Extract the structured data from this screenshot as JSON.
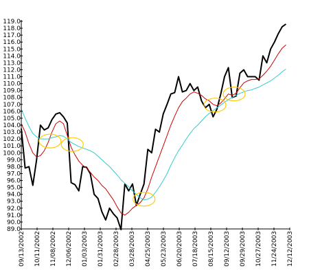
{
  "chart_data": {
    "type": "line",
    "title": "",
    "xlabel": "",
    "ylabel": "",
    "ylim": [
      89.0,
      119.0
    ],
    "grid": false,
    "legend": "none",
    "y_ticks": [
      "89.0",
      "90.0",
      "91.0",
      "92.0",
      "93.0",
      "94.0",
      "95.0",
      "96.0",
      "97.0",
      "98.0",
      "99.0",
      "100.0",
      "101.0",
      "102.0",
      "103.0",
      "104.0",
      "105.0",
      "106.0",
      "107.0",
      "108.0",
      "109.0",
      "110.0",
      "111.0",
      "112.0",
      "113.0",
      "114.0",
      "115.0",
      "116.0",
      "117.0",
      "118.0",
      "119.0"
    ],
    "x_ticks": [
      "09/13/2002",
      "10/11/2002",
      "11/08/2002",
      "12/06/2002",
      "01/03/2003",
      "01/31/2003",
      "02/28/2003",
      "03/28/2003",
      "04/25/2003",
      "05/23/2003",
      "06/20/2003",
      "07/18/2003",
      "08/15/2003",
      "09/12/2003",
      "09/29/2003",
      "10/27/2003",
      "11/24/2003",
      "12/12/2003"
    ],
    "x_range": [
      0,
      70
    ],
    "series": [
      {
        "color": "#000000",
        "width": 2,
        "points": [
          [
            0,
            103.5
          ],
          [
            1,
            97.8
          ],
          [
            2,
            98.0
          ],
          [
            3,
            95.3
          ],
          [
            4,
            99.0
          ],
          [
            5,
            104.0
          ],
          [
            6,
            103.3
          ],
          [
            7,
            103.6
          ],
          [
            8,
            104.8
          ],
          [
            9,
            105.6
          ],
          [
            10,
            105.8
          ],
          [
            11,
            105.2
          ],
          [
            12,
            104.3
          ],
          [
            13,
            95.7
          ],
          [
            14,
            95.4
          ],
          [
            15,
            94.5
          ],
          [
            16,
            98.0
          ],
          [
            17,
            97.9
          ],
          [
            18,
            97.0
          ],
          [
            19,
            94.0
          ],
          [
            20,
            93.4
          ],
          [
            21,
            91.5
          ],
          [
            22,
            90.3
          ],
          [
            23,
            92.0
          ],
          [
            24,
            91.2
          ],
          [
            25,
            90.6
          ],
          [
            26,
            88.9
          ],
          [
            27,
            95.5
          ],
          [
            28,
            94.5
          ],
          [
            29,
            95.5
          ],
          [
            30,
            92.4
          ],
          [
            31,
            94.0
          ],
          [
            32,
            95.5
          ],
          [
            33,
            100.5
          ],
          [
            34,
            100.0
          ],
          [
            35,
            103.4
          ],
          [
            36,
            103.0
          ],
          [
            37,
            105.6
          ],
          [
            38,
            107.0
          ],
          [
            39,
            108.5
          ],
          [
            40,
            108.7
          ],
          [
            41,
            111.0
          ],
          [
            42,
            108.8
          ],
          [
            43,
            109.0
          ],
          [
            44,
            110.0
          ],
          [
            45,
            109.0
          ],
          [
            46,
            109.5
          ],
          [
            47,
            107.5
          ],
          [
            48,
            106.5
          ],
          [
            49,
            107.0
          ],
          [
            50,
            105.2
          ],
          [
            51,
            106.3
          ],
          [
            52,
            108.5
          ],
          [
            53,
            111.0
          ],
          [
            54,
            112.3
          ],
          [
            55,
            108.0
          ],
          [
            56,
            108.2
          ],
          [
            57,
            111.5
          ],
          [
            58,
            112.0
          ],
          [
            59,
            111.0
          ],
          [
            60,
            111.0
          ],
          [
            61,
            111.0
          ],
          [
            62,
            110.5
          ],
          [
            63,
            114.0
          ],
          [
            64,
            113.0
          ],
          [
            65,
            115.0
          ],
          [
            66,
            116.0
          ],
          [
            67,
            117.2
          ],
          [
            68,
            118.2
          ],
          [
            69,
            118.6
          ]
        ]
      },
      {
        "color": "#cc0000",
        "width": 1,
        "points": [
          [
            0,
            104.2
          ],
          [
            1,
            103.0
          ],
          [
            2,
            101.3
          ],
          [
            3,
            100.0
          ],
          [
            4,
            99.4
          ],
          [
            5,
            99.6
          ],
          [
            6,
            100.3
          ],
          [
            7,
            101.5
          ],
          [
            8,
            103.0
          ],
          [
            9,
            104.2
          ],
          [
            10,
            104.6
          ],
          [
            11,
            104.2
          ],
          [
            12,
            102.5
          ],
          [
            13,
            100.8
          ],
          [
            14,
            99.7
          ],
          [
            15,
            98.8
          ],
          [
            16,
            98.2
          ],
          [
            17,
            97.8
          ],
          [
            18,
            97.2
          ],
          [
            19,
            96.5
          ],
          [
            20,
            96.0
          ],
          [
            21,
            95.3
          ],
          [
            22,
            94.8
          ],
          [
            23,
            94.0
          ],
          [
            24,
            93.2
          ],
          [
            25,
            92.2
          ],
          [
            26,
            91.3
          ],
          [
            27,
            91.0
          ],
          [
            28,
            91.4
          ],
          [
            29,
            92.0
          ],
          [
            30,
            92.4
          ],
          [
            31,
            92.8
          ],
          [
            32,
            93.5
          ],
          [
            33,
            94.8
          ],
          [
            34,
            96.5
          ],
          [
            35,
            98.0
          ],
          [
            36,
            99.5
          ],
          [
            37,
            101.0
          ],
          [
            38,
            102.5
          ],
          [
            39,
            104.0
          ],
          [
            40,
            105.3
          ],
          [
            41,
            106.5
          ],
          [
            42,
            107.4
          ],
          [
            43,
            107.9
          ],
          [
            44,
            108.5
          ],
          [
            45,
            108.8
          ],
          [
            46,
            108.6
          ],
          [
            47,
            108.3
          ],
          [
            48,
            107.8
          ],
          [
            49,
            107.5
          ],
          [
            50,
            107.0
          ],
          [
            51,
            106.8
          ],
          [
            52,
            107.2
          ],
          [
            53,
            107.8
          ],
          [
            54,
            108.5
          ],
          [
            55,
            108.3
          ],
          [
            56,
            108.6
          ],
          [
            57,
            109.4
          ],
          [
            58,
            110.1
          ],
          [
            59,
            110.4
          ],
          [
            60,
            110.6
          ],
          [
            61,
            110.6
          ],
          [
            62,
            110.7
          ],
          [
            63,
            111.2
          ],
          [
            64,
            111.8
          ],
          [
            65,
            112.5
          ],
          [
            66,
            113.4
          ],
          [
            67,
            114.3
          ],
          [
            68,
            115.1
          ],
          [
            69,
            115.6
          ]
        ]
      },
      {
        "color": "#33cccc",
        "width": 1,
        "points": [
          [
            0,
            106.3
          ],
          [
            1,
            105.0
          ],
          [
            2,
            103.8
          ],
          [
            3,
            102.8
          ],
          [
            4,
            102.3
          ],
          [
            5,
            102.0
          ],
          [
            6,
            102.0
          ],
          [
            7,
            102.0
          ],
          [
            8,
            102.2
          ],
          [
            9,
            102.3
          ],
          [
            10,
            102.5
          ],
          [
            11,
            102.4
          ],
          [
            12,
            102.0
          ],
          [
            13,
            101.5
          ],
          [
            14,
            101.2
          ],
          [
            15,
            100.9
          ],
          [
            16,
            100.7
          ],
          [
            17,
            100.5
          ],
          [
            18,
            100.3
          ],
          [
            19,
            100.0
          ],
          [
            20,
            99.5
          ],
          [
            21,
            99.0
          ],
          [
            22,
            98.5
          ],
          [
            23,
            98.0
          ],
          [
            24,
            97.4
          ],
          [
            25,
            96.8
          ],
          [
            26,
            96.1
          ],
          [
            27,
            95.6
          ],
          [
            28,
            95.1
          ],
          [
            29,
            94.5
          ],
          [
            30,
            94.0
          ],
          [
            31,
            93.5
          ],
          [
            32,
            93.2
          ],
          [
            33,
            93.3
          ],
          [
            34,
            93.6
          ],
          [
            35,
            94.3
          ],
          [
            36,
            95.1
          ],
          [
            37,
            96.0
          ],
          [
            38,
            97.0
          ],
          [
            39,
            98.2
          ],
          [
            40,
            99.3
          ],
          [
            41,
            100.3
          ],
          [
            42,
            101.1
          ],
          [
            43,
            102.0
          ],
          [
            44,
            102.8
          ],
          [
            45,
            103.5
          ],
          [
            46,
            104.0
          ],
          [
            47,
            104.6
          ],
          [
            48,
            105.2
          ],
          [
            49,
            105.7
          ],
          [
            50,
            106.1
          ],
          [
            51,
            106.5
          ],
          [
            52,
            106.9
          ],
          [
            53,
            107.3
          ],
          [
            54,
            107.7
          ],
          [
            55,
            108.0
          ],
          [
            56,
            108.3
          ],
          [
            57,
            108.6
          ],
          [
            58,
            108.8
          ],
          [
            59,
            109.0
          ],
          [
            60,
            109.1
          ],
          [
            61,
            109.3
          ],
          [
            62,
            109.5
          ],
          [
            63,
            109.8
          ],
          [
            64,
            110.1
          ],
          [
            65,
            110.4
          ],
          [
            66,
            110.8
          ],
          [
            67,
            111.2
          ],
          [
            68,
            111.7
          ],
          [
            69,
            112.1
          ]
        ]
      }
    ],
    "annotations": [
      {
        "shape": "ellipse",
        "color": "#ffcc00",
        "x": 7.5,
        "y": 101.7
      },
      {
        "shape": "ellipse",
        "color": "#ffcc00",
        "x": 13.3,
        "y": 101.2
      },
      {
        "shape": "ellipse",
        "color": "#ffcc00",
        "x": 32.0,
        "y": 93.3
      },
      {
        "shape": "ellipse",
        "color": "#ffcc00",
        "x": 50.5,
        "y": 106.9
      },
      {
        "shape": "ellipse",
        "color": "#ffcc00",
        "x": 55.5,
        "y": 108.5
      }
    ]
  }
}
